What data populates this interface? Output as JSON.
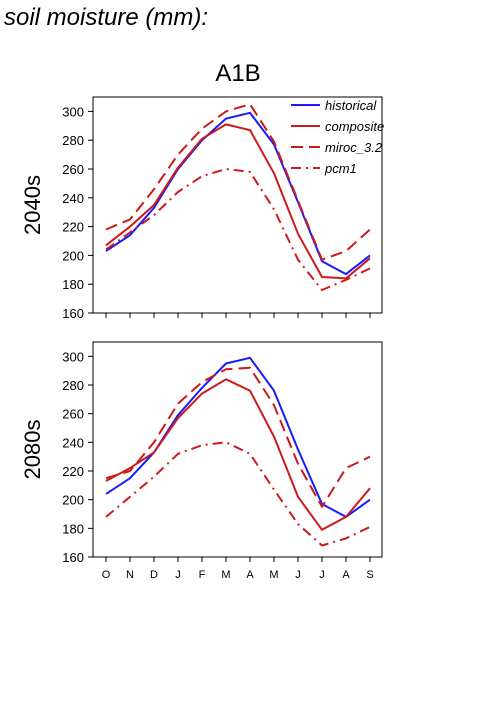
{
  "page_title": "soil moisture (mm):",
  "chart_data": {
    "type": "line",
    "title": "A1B",
    "categories": [
      "O",
      "N",
      "D",
      "J",
      "F",
      "M",
      "A",
      "M",
      "J",
      "J",
      "A",
      "S"
    ],
    "ylim": [
      160,
      310
    ],
    "yticks": [
      160,
      180,
      200,
      220,
      240,
      260,
      280,
      300
    ],
    "legend_placement": "top-right",
    "grid": false,
    "series_styles": [
      {
        "name": "historical",
        "color": "#1a1aff",
        "dash": "solid"
      },
      {
        "name": "composite",
        "color": "#cc1a1a",
        "dash": "solid"
      },
      {
        "name": "miroc_3.2",
        "color": "#cc1a1a",
        "dash": "dashed"
      },
      {
        "name": "pcm1",
        "color": "#cc1a1a",
        "dash": "dashdot"
      }
    ],
    "panels": [
      {
        "ylabel": "2040s",
        "series": [
          {
            "name": "historical",
            "values": [
              203,
              214,
              233,
              260,
              280,
              295,
              299,
              277,
              237,
              196,
              187,
              200
            ]
          },
          {
            "name": "composite",
            "values": [
              207,
              220,
              235,
              261,
              281,
              291,
              287,
              257,
              215,
              185,
              184,
              198
            ]
          },
          {
            "name": "miroc_3.2",
            "values": [
              218,
              225,
              246,
              270,
              288,
              300,
              305,
              279,
              238,
              197,
              203,
              218
            ]
          },
          {
            "name": "pcm1",
            "values": [
              204,
              216,
              228,
              244,
              255,
              260,
              258,
              232,
              197,
              176,
              183,
              191
            ]
          }
        ]
      },
      {
        "ylabel": "2080s",
        "series": [
          {
            "name": "historical",
            "values": [
              204,
              215,
              233,
              259,
              278,
              295,
              299,
              276,
              235,
              197,
              188,
              200
            ]
          },
          {
            "name": "composite",
            "values": [
              213,
              222,
              233,
              257,
              274,
              284,
              276,
              244,
              202,
              179,
              188,
              208
            ]
          },
          {
            "name": "miroc_3.2",
            "values": [
              215,
              220,
              240,
              267,
              282,
              291,
              292,
              266,
              225,
              195,
              222,
              230
            ]
          },
          {
            "name": "pcm1",
            "values": [
              188,
              202,
              216,
              232,
              238,
              240,
              232,
              207,
              183,
              168,
              173,
              181
            ]
          }
        ]
      }
    ]
  }
}
